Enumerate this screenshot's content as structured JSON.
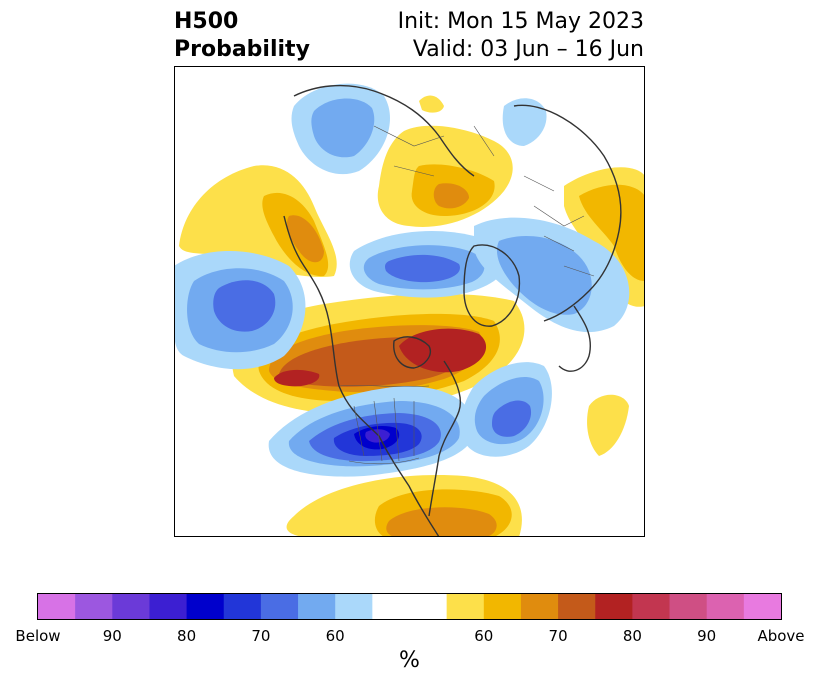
{
  "title": {
    "variable": "H500",
    "product": "Probability",
    "init": "Init: Mon 15 May 2023",
    "valid": "Valid: 03 Jun – 16 Jun"
  },
  "colorbar": {
    "unit": "%",
    "below_colors": [
      "#d772e6",
      "#9c57e0",
      "#6b3ad8",
      "#3c1fd2",
      "#0000cc",
      "#2236d8",
      "#4a6de4",
      "#72aaf0",
      "#aad8fa"
    ],
    "above_colors": [
      "#fde04a",
      "#f2b700",
      "#e08c0e",
      "#c45a1a",
      "#b22222",
      "#c23650",
      "#cf4f84",
      "#dc62b0",
      "#e87ae0"
    ],
    "neutral_color": "#ffffff",
    "tick_labels": [
      "Below",
      "90",
      "80",
      "70",
      "60",
      "60",
      "70",
      "80",
      "90",
      "Above"
    ]
  },
  "map": {
    "projection": "polar-stereographic",
    "anomalies": [
      {
        "region": "Mexico / southern USA",
        "sign": "below",
        "level": 80
      },
      {
        "region": "central Canada / Hudson Bay",
        "sign": "above",
        "level": 80
      },
      {
        "region": "northeast Pacific",
        "sign": "above",
        "level": 80
      },
      {
        "region": "north Atlantic",
        "sign": "below",
        "level": 70
      },
      {
        "region": "central Pacific",
        "sign": "below",
        "level": 70
      },
      {
        "region": "Arctic Ocean / Greenland",
        "sign": "below",
        "level": 70
      },
      {
        "region": "Europe",
        "sign": "below",
        "level": 60
      },
      {
        "region": "western Russia",
        "sign": "above",
        "level": 70
      },
      {
        "region": "northern South America",
        "sign": "above",
        "level": 70
      }
    ]
  }
}
